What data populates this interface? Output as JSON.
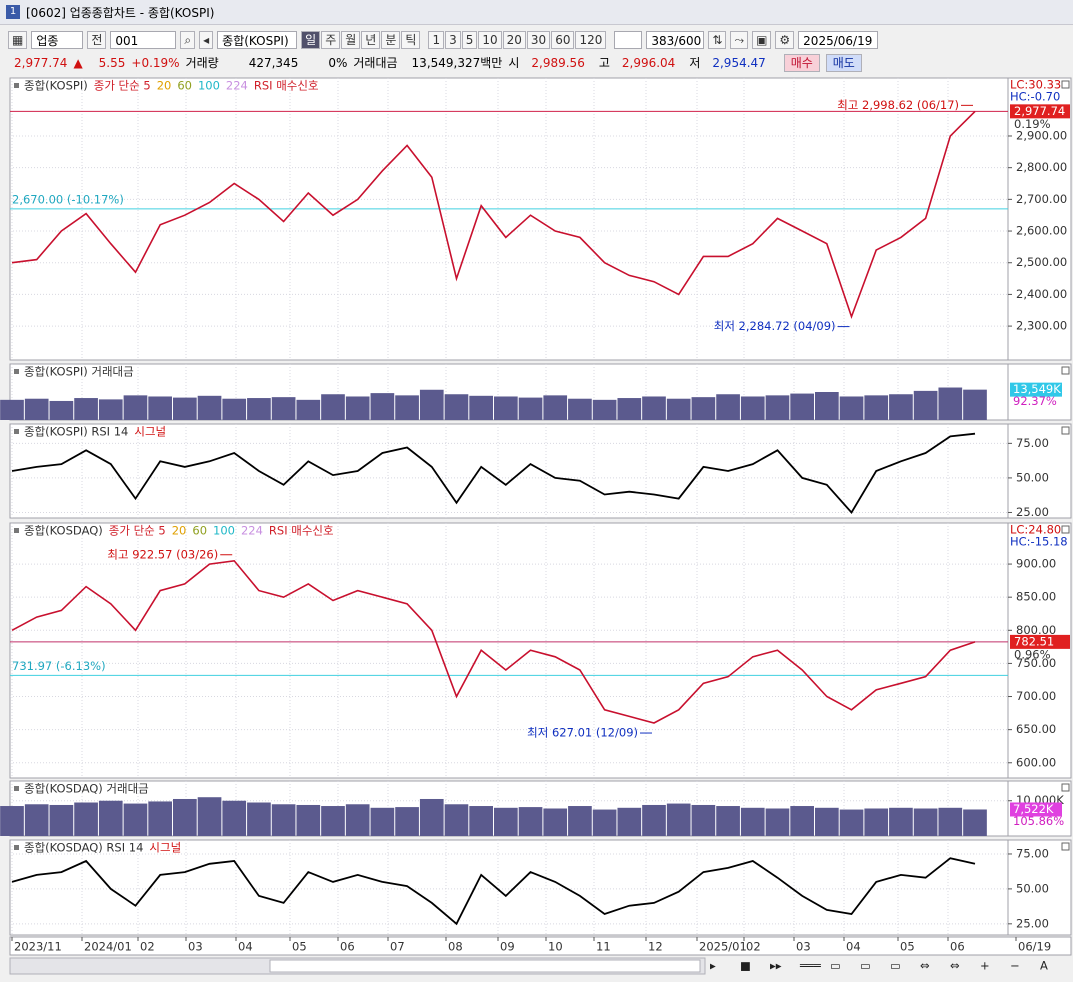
{
  "window_title": "[0602] 업종종합차트 - 종합(KOSPI)",
  "toolbar": {
    "market": "업종",
    "scope": "전",
    "code": "001",
    "name": "종합(KOSPI)",
    "periods": [
      "일",
      "주",
      "월",
      "년",
      "분",
      "틱"
    ],
    "intervals": [
      "1",
      "3",
      "5",
      "10",
      "20",
      "30",
      "60",
      "120"
    ],
    "count": "383/600",
    "date": "2025/06/19"
  },
  "quote": {
    "price": "2,977.74",
    "change": "5.55",
    "rate": "+0.19%",
    "volume_label": "거래량",
    "volume": "427,345",
    "volume_rate": "0%",
    "amount_label": "거래대금",
    "amount": "13,549,327백만",
    "open_label": "시",
    "open": "2,989.56",
    "high_label": "고",
    "high": "2,996.04",
    "low_label": "저",
    "low": "2,954.47",
    "buy": "매수",
    "sell": "매도"
  },
  "panels": [
    {
      "type": "line",
      "name": "종합(KOSPI)",
      "legend": [
        "종가 단순 5",
        "20",
        "60",
        "100",
        "224",
        "RSI 매수신호"
      ],
      "legend_colors": [
        "#d0202a",
        "#e0a000",
        "#90a020",
        "#20b8c8",
        "#c890e0",
        "#d0202a"
      ],
      "lc": "LC:30.33",
      "hc": "HC:-0.70",
      "color": "#c8102e",
      "values": [
        2500,
        2510,
        2600,
        2655,
        2560,
        2470,
        2620,
        2650,
        2690,
        2750,
        2700,
        2630,
        2720,
        2650,
        2700,
        2790,
        2870,
        2770,
        2450,
        2680,
        2580,
        2650,
        2600,
        2580,
        2500,
        2460,
        2440,
        2400,
        2520,
        2520,
        2560,
        2640,
        2600,
        2560,
        2330,
        2540,
        2580,
        2640,
        2900,
        2977.74
      ],
      "ylim": [
        2193,
        3083
      ],
      "yticks": [
        {
          "value": 2300,
          "label": "2,300.00"
        },
        {
          "value": 2400,
          "label": "2,400.00"
        },
        {
          "value": 2500,
          "label": "2,500.00"
        },
        {
          "value": 2600,
          "label": "2,600.00"
        },
        {
          "value": 2700,
          "label": "2,700.00"
        },
        {
          "value": 2800,
          "label": "2,800.00"
        },
        {
          "value": 2900,
          "label": "2,900.00"
        }
      ],
      "last": {
        "value": 2977.74,
        "label": "2,977.74"
      },
      "last_rate": "0.19%",
      "last_color": "#d0204a",
      "ref": {
        "value": 2670,
        "label": "2,670.00 (-10.17%)"
      },
      "high_note": "최고 2,998.62 (06/17)",
      "low_note": "최저 2,284.72 (04/09)"
    },
    {
      "type": "bar",
      "name": "종합(KOSPI) 거래대금",
      "color": "#5b5a8e",
      "values": [
        9000,
        9500,
        8500,
        9800,
        9200,
        11000,
        10500,
        10000,
        10800,
        9500,
        9800,
        10200,
        9000,
        11500,
        10500,
        12000,
        11000,
        13500,
        11500,
        10800,
        10500,
        10000,
        11000,
        9500,
        9000,
        9800,
        10500,
        9500,
        10200,
        11500,
        10500,
        11000,
        11800,
        12500,
        10500,
        11000,
        11500,
        13000,
        14500,
        13549
      ],
      "ylim": [
        0,
        25000
      ],
      "last_label": "13,549K",
      "last_box": "#30c8e8",
      "rate_label": "92.37%"
    },
    {
      "type": "line",
      "name": "종합(KOSPI) RSI 14",
      "signal": "시그널",
      "color": "#000000",
      "values": [
        55,
        58,
        60,
        70,
        60,
        35,
        62,
        58,
        62,
        68,
        55,
        45,
        62,
        52,
        55,
        68,
        72,
        58,
        32,
        58,
        45,
        60,
        50,
        48,
        38,
        40,
        38,
        35,
        58,
        55,
        60,
        70,
        50,
        45,
        25,
        55,
        62,
        68,
        80,
        82
      ],
      "ylim": [
        21,
        89
      ],
      "yticks": [
        {
          "value": 25,
          "label": "25.00"
        },
        {
          "value": 50,
          "label": "50.00"
        },
        {
          "value": 75,
          "label": "75.00"
        }
      ]
    },
    {
      "type": "line",
      "name": "종합(KOSDAQ)",
      "legend": [
        "종가 단순 5",
        "20",
        "60",
        "100",
        "224",
        "RSI 매수신호"
      ],
      "legend_colors": [
        "#d0202a",
        "#e0a000",
        "#90a020",
        "#20b8c8",
        "#c890e0",
        "#d0202a"
      ],
      "lc": "LC:24.80",
      "hc": "HC:-15.18",
      "color": "#c8102e",
      "values": [
        800,
        820,
        830,
        866,
        840,
        800,
        860,
        870,
        900,
        905,
        860,
        850,
        870,
        845,
        860,
        850,
        840,
        800,
        700,
        770,
        740,
        770,
        760,
        740,
        680,
        670,
        660,
        680,
        720,
        730,
        760,
        770,
        740,
        700,
        680,
        710,
        720,
        730,
        770,
        782.51
      ],
      "ylim": [
        577,
        962
      ],
      "yticks": [
        {
          "value": 600,
          "label": "600.00"
        },
        {
          "value": 650,
          "label": "650.00"
        },
        {
          "value": 700,
          "label": "700.00"
        },
        {
          "value": 750,
          "label": "750.00"
        },
        {
          "value": 800,
          "label": "800.00"
        },
        {
          "value": 850,
          "label": "850.00"
        },
        {
          "value": 900,
          "label": "900.00"
        }
      ],
      "last": {
        "value": 782.51,
        "label": "782.51"
      },
      "last_rate": "0.96%",
      "last_color": "#c0306a",
      "ref": {
        "value": 731.97,
        "label": "731.97 (-6.13%)"
      },
      "high_note": "최고 922.57 (03/26)",
      "low_note": "최저 627.01 (12/09)"
    },
    {
      "type": "bar",
      "name": "종합(KOSDAQ) 거래대금",
      "color": "#5b5a8e",
      "values": [
        8500,
        9000,
        8800,
        9500,
        10000,
        9200,
        9800,
        10500,
        11000,
        10000,
        9500,
        9000,
        8800,
        8500,
        9000,
        8000,
        8200,
        10500,
        9000,
        8500,
        8000,
        8200,
        7800,
        8500,
        7500,
        8000,
        8800,
        9200,
        8800,
        8500,
        8000,
        7800,
        8500,
        8000,
        7500,
        7800,
        8000,
        7800,
        8000,
        7522
      ],
      "ylim": [
        0,
        15600
      ],
      "yticks": [
        {
          "value": 10000,
          "label": "10,000K"
        }
      ],
      "last_label": "7,522K",
      "last_box": "#e040e0",
      "rate_label": "105.86%"
    },
    {
      "type": "line",
      "name": "종합(KOSDAQ) RSI 14",
      "signal": "시그널",
      "color": "#000000",
      "values": [
        55,
        60,
        62,
        70,
        50,
        38,
        60,
        62,
        68,
        70,
        45,
        40,
        62,
        55,
        60,
        55,
        52,
        40,
        25,
        60,
        45,
        62,
        55,
        45,
        32,
        38,
        40,
        48,
        62,
        65,
        70,
        58,
        45,
        35,
        32,
        55,
        60,
        58,
        72,
        68
      ],
      "ylim": [
        17,
        85
      ],
      "yticks": [
        {
          "value": 25,
          "label": "25.00"
        },
        {
          "value": 50,
          "label": "50.00"
        },
        {
          "value": 75,
          "label": "75.00"
        }
      ]
    }
  ],
  "x_axis": {
    "labels": [
      "2023/11",
      "2024/01",
      "02",
      "03",
      "04",
      "05",
      "06",
      "07",
      "08",
      "09",
      "10",
      "11",
      "12",
      "2025/01",
      "02",
      "03",
      "04",
      "05",
      "06",
      "06/19"
    ]
  }
}
